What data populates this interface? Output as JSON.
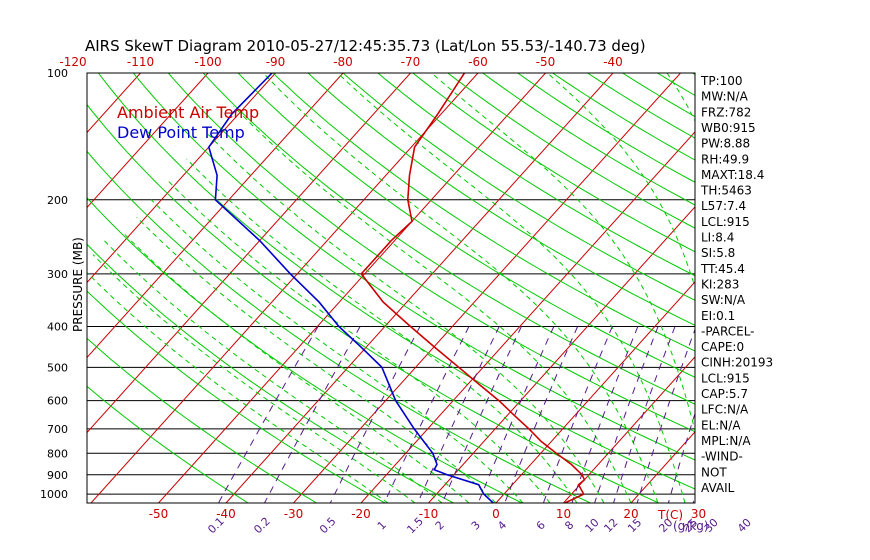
{
  "header": {
    "title": "AIRS SkewT Diagram 2010-05-27/12:45:35.73 (Lat/Lon 55.53/-140.73 deg)"
  },
  "labels": {
    "ylabel": "PRESSURE (MB)",
    "mix_unit": "(g/kg)",
    "t_unit": "T(C)"
  },
  "legend": {
    "ambient": "Ambient Air Temp",
    "dewpoint": "Dew Point Temp"
  },
  "colors": {
    "isotherm": "#cc0000",
    "dry_adiabat": "#00cc00",
    "moist_adiabat": "#00cc00",
    "mixing_ratio": "#551a8b",
    "temperature": "#cc0000",
    "dewpoint": "#0000cc",
    "isobar": "#000000"
  },
  "sidebar": [
    "TP:100",
    "MW:N/A",
    "FRZ:782",
    "WB0:915",
    "PW:8.88",
    "RH:49.9",
    "MAXT:18.4",
    "TH:5463",
    "L57:7.4",
    "LCL:915",
    "LI:8.4",
    "SI:5.8",
    "TT:45.4",
    "KI:283",
    "SW:N/A",
    "EI:0.1",
    "-PARCEL-",
    "CAPE:0",
    "CINH:20193",
    "LCL:915",
    "CAP:5.7",
    "LFC:N/A",
    "EL:N/A",
    "MPL:N/A",
    "-WIND-",
    "NOT",
    "AVAIL"
  ],
  "chart_data": {
    "type": "line",
    "title": "AIRS SkewT Diagram 2010-05-27/12:45:35.73 (Lat/Lon 55.53/-140.73 deg)",
    "ylabel": "PRESSURE (MB)",
    "xlabel": "T(C)",
    "y_scale": "log",
    "y_range_mb": [
      100,
      1050
    ],
    "pressure_ticks": [
      100,
      200,
      300,
      400,
      500,
      600,
      700,
      800,
      900,
      1000
    ],
    "isobars_drawn": [
      200,
      300,
      400,
      500,
      600,
      700,
      800,
      900,
      1000
    ],
    "bottom_temp_ticks": [
      -50,
      -40,
      -30,
      -20,
      -10,
      0,
      10,
      20,
      30
    ],
    "top_temp_ticks": [
      -120,
      -110,
      -100,
      -90,
      -80,
      -70,
      -60,
      -50,
      -40
    ],
    "isotherms": [
      -150,
      -140,
      -130,
      -120,
      -110,
      -100,
      -90,
      -80,
      -70,
      -60,
      -50,
      -40,
      -30,
      -20,
      -10,
      0,
      10,
      20,
      30,
      40
    ],
    "mixing_ratio_labels": [
      "0.1",
      "0.2",
      "0.5",
      "1",
      "1.5",
      "2",
      "3",
      "4",
      "6",
      "8",
      "10",
      "12",
      "15",
      "20",
      "25",
      "30",
      "40"
    ],
    "series": [
      {
        "name": "Ambient Air Temp",
        "points": [
          [
            1050,
            10.2
          ],
          [
            1000,
            11.8
          ],
          [
            950,
            9.8
          ],
          [
            925,
            10.0
          ],
          [
            900,
            9.0
          ],
          [
            850,
            6.0
          ],
          [
            800,
            2.3
          ],
          [
            750,
            -1.5
          ],
          [
            700,
            -5.0
          ],
          [
            650,
            -9.0
          ],
          [
            600,
            -13.2
          ],
          [
            550,
            -18.2
          ],
          [
            500,
            -23.6
          ],
          [
            450,
            -29.6
          ],
          [
            400,
            -36.2
          ],
          [
            350,
            -43.5
          ],
          [
            300,
            -50.5
          ],
          [
            250,
            -50.5
          ],
          [
            225,
            -50.0
          ],
          [
            200,
            -53.5
          ],
          [
            175,
            -56.5
          ],
          [
            150,
            -59.5
          ],
          [
            125,
            -60.5
          ],
          [
            100,
            -62.0
          ]
        ]
      },
      {
        "name": "Dew Point Temp",
        "points": [
          [
            1050,
            -0.4
          ],
          [
            1000,
            -3.0
          ],
          [
            950,
            -5.0
          ],
          [
            900,
            -11.0
          ],
          [
            875,
            -13.6
          ],
          [
            850,
            -13.9
          ],
          [
            800,
            -16.0
          ],
          [
            700,
            -22.0
          ],
          [
            600,
            -28.5
          ],
          [
            500,
            -35.0
          ],
          [
            450,
            -40.5
          ],
          [
            400,
            -46.8
          ],
          [
            350,
            -53.0
          ],
          [
            300,
            -61.0
          ],
          [
            250,
            -70.0
          ],
          [
            200,
            -82.0
          ],
          [
            175,
            -85.0
          ],
          [
            150,
            -90.0
          ],
          [
            125,
            -91.0
          ],
          [
            100,
            -90.5
          ]
        ]
      }
    ]
  }
}
